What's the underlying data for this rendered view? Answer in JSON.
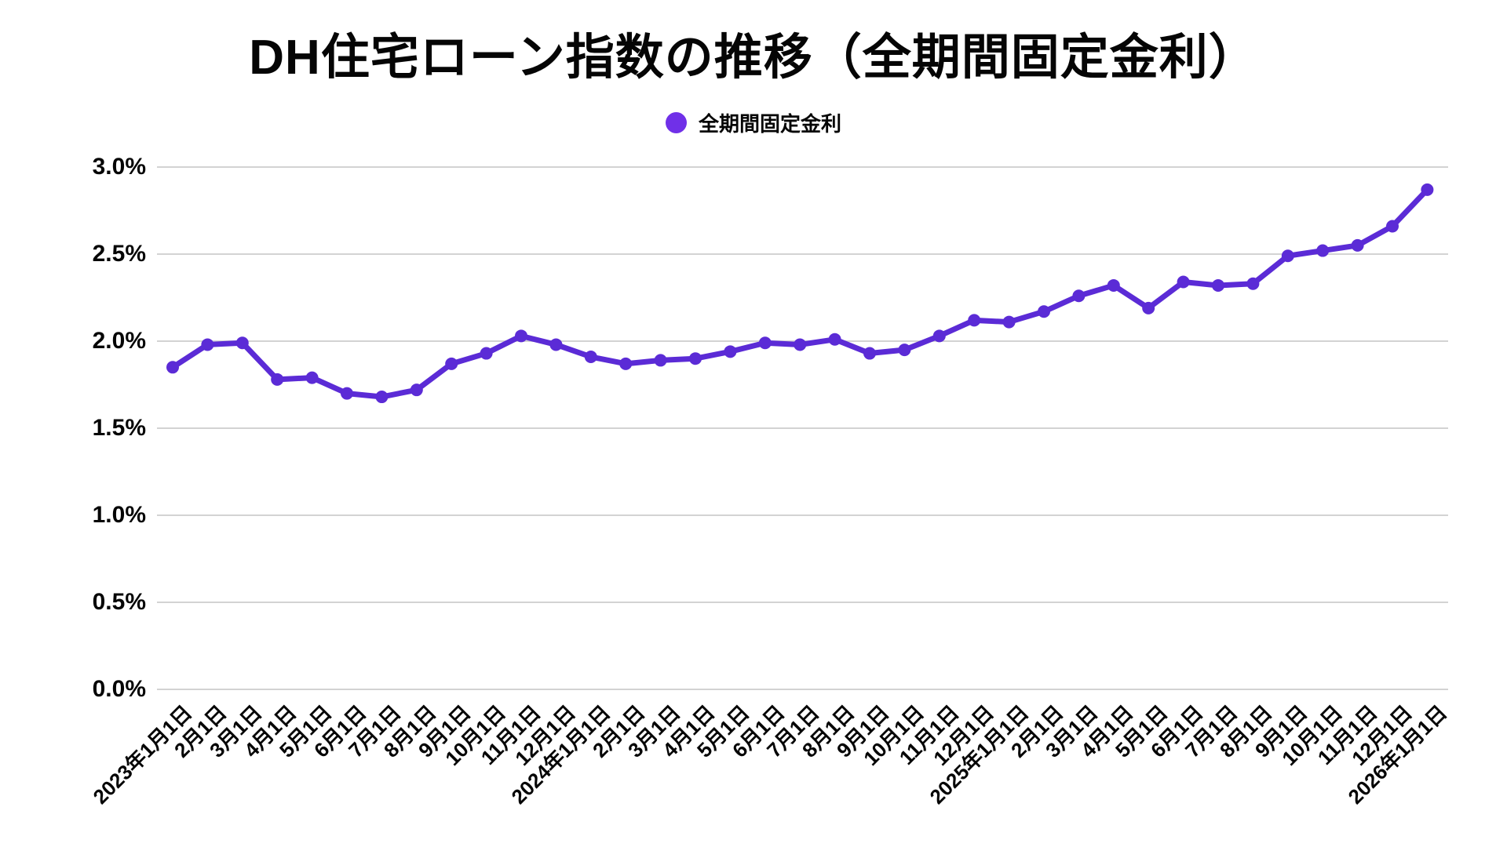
{
  "header": {
    "title": "DH住宅ローン指数の推移（全期間固定金利）"
  },
  "legend": {
    "items": [
      {
        "label": "全期間固定金利",
        "color": "#7030E8"
      }
    ]
  },
  "colors": {
    "line": "#5B2BD6",
    "marker": "#5B2BD6",
    "grid": "#D3D3D3",
    "text": "#050505",
    "background": "#FFFFFF"
  },
  "chart_data": {
    "type": "line",
    "title": "DH住宅ローン指数の推移（全期間固定金利）",
    "legend_position": "top",
    "grid": "horizontal-only",
    "ylim": [
      0.0,
      3.0
    ],
    "y_tick_values": [
      0.0,
      0.5,
      1.0,
      1.5,
      2.0,
      2.5,
      3.0
    ],
    "y_tick_labels": [
      "0.0%",
      "0.5%",
      "1.0%",
      "1.5%",
      "2.0%",
      "2.5%",
      "3.0%"
    ],
    "categories": [
      "2023年1月1日",
      "2月1日",
      "3月1日",
      "4月1日",
      "5月1日",
      "6月1日",
      "7月1日",
      "8月1日",
      "9月1日",
      "10月1日",
      "11月1日",
      "12月1日",
      "2024年1月1日",
      "2月1日",
      "3月1日",
      "4月1日",
      "5月1日",
      "6月1日",
      "7月1日",
      "8月1日",
      "9月1日",
      "10月1日",
      "11月1日",
      "12月1日",
      "2025年1月1日",
      "2月1日",
      "3月1日",
      "4月1日",
      "5月1日",
      "6月1日",
      "7月1日",
      "8月1日",
      "9月1日",
      "10月1日",
      "11月1日",
      "12月1日",
      "2026年1月1日"
    ],
    "series": [
      {
        "name": "全期間固定金利",
        "unit": "%",
        "values": [
          1.85,
          1.98,
          1.99,
          1.78,
          1.79,
          1.7,
          1.68,
          1.72,
          1.87,
          1.93,
          2.03,
          1.98,
          1.91,
          1.87,
          1.89,
          1.9,
          1.94,
          1.99,
          1.98,
          2.01,
          1.93,
          1.95,
          2.03,
          2.12,
          2.11,
          2.17,
          2.26,
          2.32,
          2.19,
          2.34,
          2.32,
          2.33,
          2.49,
          2.52,
          2.55,
          2.66,
          2.87
        ]
      }
    ]
  }
}
